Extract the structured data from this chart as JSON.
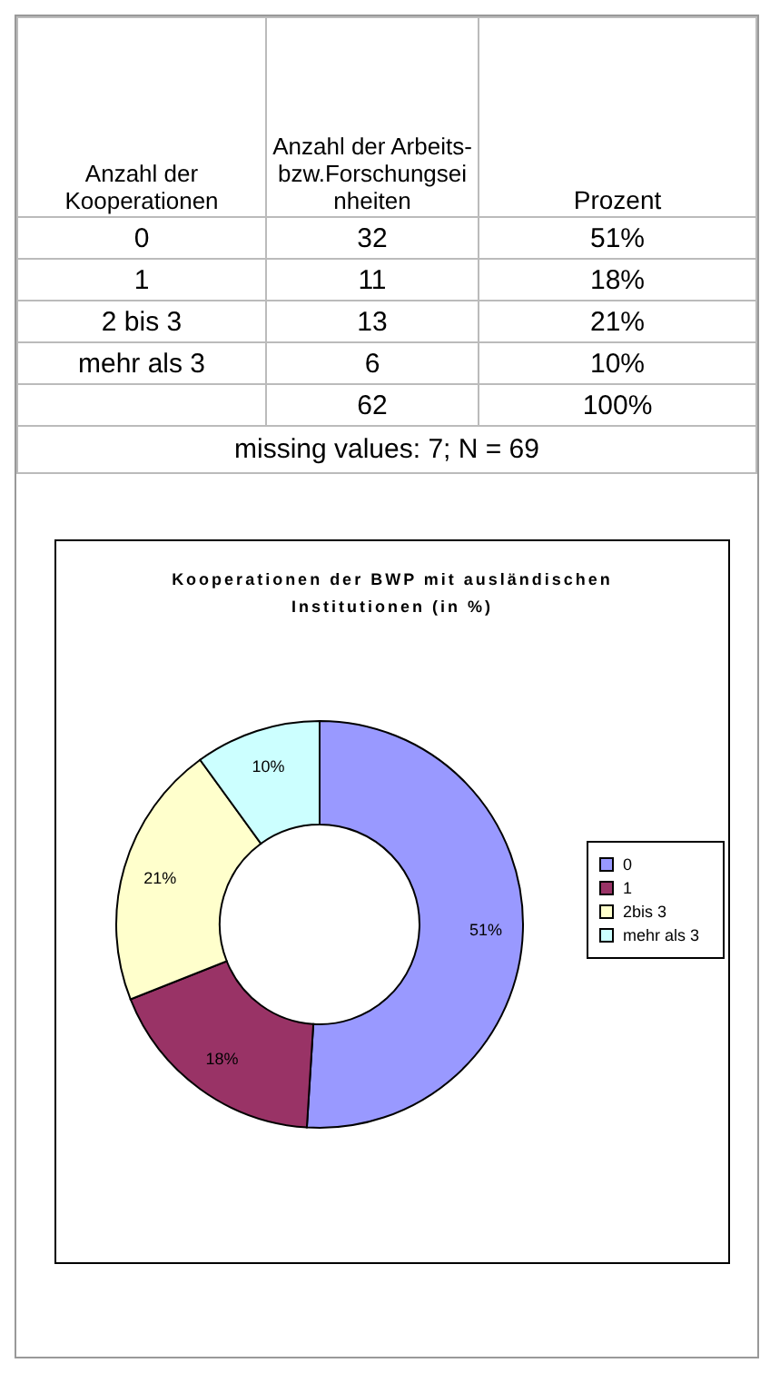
{
  "chart_data": [
    {
      "type": "other",
      "annotations": [
        "Anzahl der Kooperationen",
        "Anzahl der Arbeits- bzw.Forschungseinheiten",
        "Prozent",
        "0",
        "32",
        "51%",
        "1",
        "11",
        "18%",
        "2 bis 3",
        "13",
        "21%",
        "mehr als 3",
        "6",
        "10%",
        "62",
        "100%",
        "missing values: 7; N = 69"
      ]
    },
    {
      "type": "donut",
      "title": "Kooperationen der BWP mit ausländischen Institutionen (in %)",
      "categories": [
        "0",
        "1",
        "2bis 3",
        "mehr als 3"
      ],
      "values": [
        51,
        18,
        21,
        10
      ],
      "colors": [
        "#9999ff",
        "#993366",
        "#ffffcc",
        "#ccffff"
      ],
      "value_labels": [
        "51%",
        "18%",
        "21%",
        "10%"
      ],
      "legend": "right"
    }
  ]
}
